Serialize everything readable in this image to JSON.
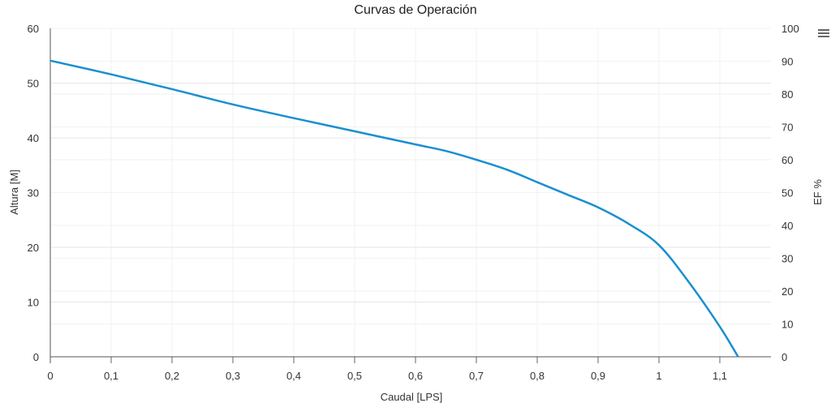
{
  "chart": {
    "title": "Curvas de Operación",
    "menu_icon": "hamburger-menu-icon"
  },
  "chart_data": {
    "type": "line",
    "title": "Curvas de Operación",
    "xlabel": "Caudal [LPS]",
    "ylabel": "Altura [M]",
    "y2label": "EF %",
    "xlim": [
      0,
      1.2
    ],
    "ylim": [
      0,
      60
    ],
    "y2lim": [
      0,
      100
    ],
    "x_ticks": [
      "0",
      "0,1",
      "0,2",
      "0,3",
      "0,4",
      "0,5",
      "0,6",
      "0,7",
      "0,8",
      "0,9",
      "1",
      "1,1"
    ],
    "y_ticks": [
      "0",
      "10",
      "20",
      "30",
      "40",
      "50",
      "60"
    ],
    "y2_ticks": [
      "0",
      "10",
      "20",
      "30",
      "40",
      "50",
      "60",
      "70",
      "80",
      "90",
      "100"
    ],
    "grid": true,
    "legend": null,
    "series": [
      {
        "name": "Altura",
        "color": "#1a8fd1",
        "axis": "left",
        "x": [
          0,
          0.1,
          0.2,
          0.3,
          0.4,
          0.5,
          0.6,
          0.65,
          0.7,
          0.75,
          0.8,
          0.85,
          0.9,
          0.95,
          1.0,
          1.05,
          1.1,
          1.13
        ],
        "values": [
          54.1,
          51.6,
          48.9,
          46.1,
          43.6,
          41.2,
          38.8,
          37.6,
          36.0,
          34.2,
          31.9,
          29.6,
          27.3,
          24.3,
          20.4,
          13.5,
          5.5,
          0
        ]
      }
    ]
  }
}
